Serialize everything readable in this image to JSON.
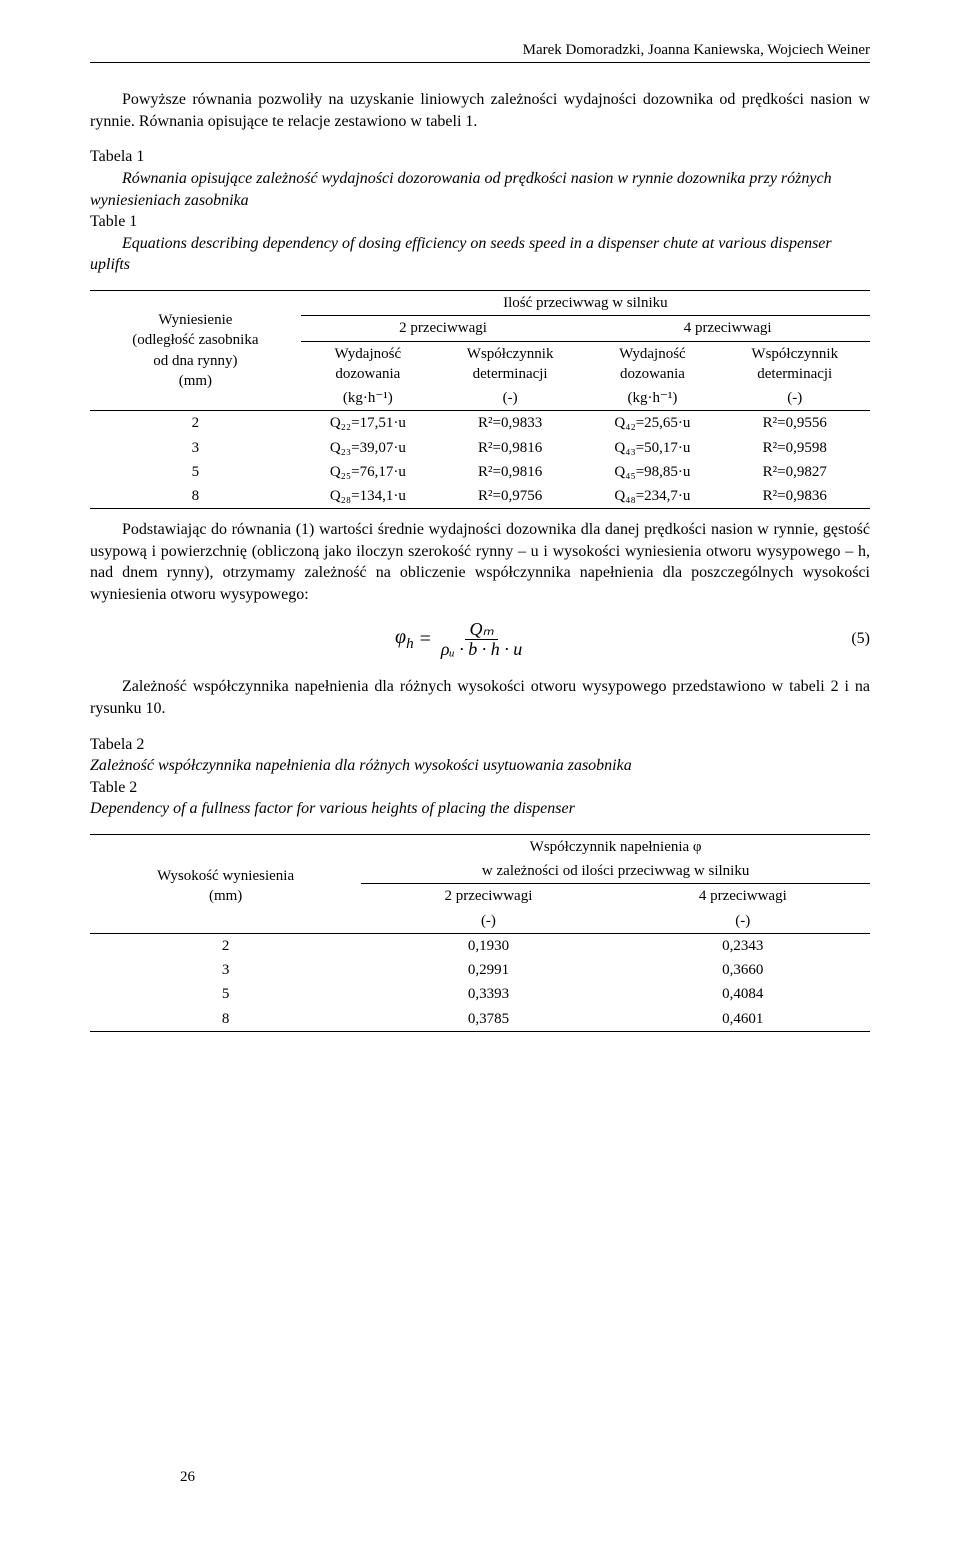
{
  "header": {
    "authors": "Marek Domoradzki, Joanna Kaniewska, Wojciech Weiner"
  },
  "para1": "Powyższe równania pozwoliły na uzyskanie liniowych zależności wydajności dozownika od prędkości nasion w rynnie. Równania opisujące te relacje zestawiono w tabeli 1.",
  "tab1": {
    "caption_pl_title": "Tabela 1",
    "caption_pl_body": "Równania opisujące zależność wydajności dozorowania od prędkości nasion w rynnie dozownika przy różnych wyniesieniach zasobnika",
    "caption_en_title": "Table 1",
    "caption_en_body": "Equations describing dependency of dosing efficiency on seeds speed in a dispenser chute at various dispenser uplifts",
    "rowhead1": "Wyniesienie",
    "rowhead2": "(odległość zasobnika",
    "rowhead3": "od dna rynny)",
    "rowhead4": "(mm)",
    "tophead": "Ilość przeciwwag w silniku",
    "group2": "2 przeciwwagi",
    "group4": "4 przeciwwagi",
    "col_q_lab1": "Wydajność",
    "col_q_lab2": "dozowania",
    "col_q_unit": "(kg·h⁻¹)",
    "col_r_lab1": "Współczynnik",
    "col_r_lab2": "determinacji",
    "col_r_unit": "(-)",
    "rows": [
      {
        "h": "2",
        "q2": "Q₂₂=17,51·u",
        "r2": "R²=0,9833",
        "q4": "Q₄₂=25,65·u",
        "r4": "R²=0,9556"
      },
      {
        "h": "3",
        "q2": "Q₂₃=39,07·u",
        "r2": "R²=0,9816",
        "q4": "Q₄₃=50,17·u",
        "r4": "R²=0,9598"
      },
      {
        "h": "5",
        "q2": "Q₂₅=76,17·u",
        "r2": "R²=0,9816",
        "q4": "Q₄₅=98,85·u",
        "r4": "R²=0,9827"
      },
      {
        "h": "8",
        "q2": "Q₂₈=134,1·u",
        "r2": "R²=0,9756",
        "q4": "Q₄₈=234,7·u",
        "r4": "R²=0,9836"
      }
    ]
  },
  "para2": "Podstawiając do równania (1) wartości średnie wydajności dozownika dla danej prędkości nasion w rynnie, gęstość usypową i powierzchnię (obliczoną jako iloczyn szerokość rynny – u i wysokości wyniesienia otworu wysypowego – h, nad dnem rynny), otrzymamy zależność na obliczenie współczynnika napełnienia dla poszczególnych wysokości wyniesienia otworu wysypowego:",
  "eq": {
    "lhs": "φ",
    "lhs_sub": "h",
    "eq_sign": "=",
    "num": "Qₘ",
    "den": "ρᵤ · b · h · u",
    "number": "(5)"
  },
  "para3": "Zależność współczynnika napełnienia dla różnych wysokości otworu wysypowego przedstawiono w tabeli 2 i na rysunku 10.",
  "tab2": {
    "caption_pl_title": "Tabela 2",
    "caption_pl_body": "Zależność współczynnika napełnienia dla różnych wysokości usytuowania zasobnika",
    "caption_en_title": "Table 2",
    "caption_en_body": "Dependency of a fullness factor for various heights of placing the dispenser",
    "rowhead1": "Wysokość wyniesienia",
    "rowhead2": "(mm)",
    "tophead1": "Współczynnik napełnienia φ",
    "tophead2": "w zależności od ilości przeciwwag w silniku",
    "col2": "2 przeciwwagi",
    "col4": "4 przeciwwagi",
    "unit": "(-)",
    "rows": [
      {
        "h": "2",
        "v2": "0,1930",
        "v4": "0,2343"
      },
      {
        "h": "3",
        "v2": "0,2991",
        "v4": "0,3660"
      },
      {
        "h": "5",
        "v2": "0,3393",
        "v4": "0,4084"
      },
      {
        "h": "8",
        "v2": "0,3785",
        "v4": "0,4601"
      }
    ]
  },
  "pagenum": "26"
}
